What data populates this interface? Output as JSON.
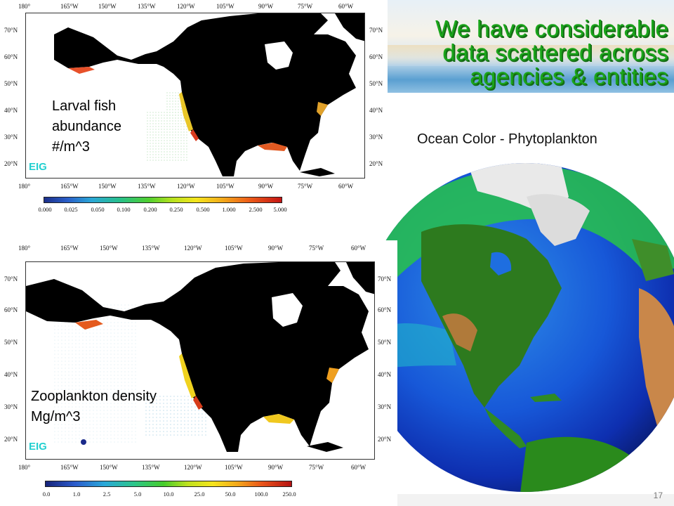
{
  "slide": {
    "title_lines": [
      "We have considerable",
      "data scattered across",
      "agencies & entities"
    ],
    "slide_number": "17"
  },
  "top_map": {
    "label_lines": [
      "Larval fish",
      "abundance",
      "#/m^3"
    ],
    "watermark": "EIG",
    "lon_labels": [
      "180°",
      "165°W",
      "150°W",
      "135°W",
      "120°W",
      "105°W",
      "90°W",
      "75°W",
      "60°W"
    ],
    "lat_labels": [
      "70°N",
      "60°N",
      "50°N",
      "40°N",
      "30°N",
      "20°N"
    ],
    "colorbar_ticks": [
      "0.000",
      "0.025",
      "0.050",
      "0.100",
      "0.200",
      "0.250",
      "0.500",
      "1.000",
      "2.500",
      "5.000"
    ]
  },
  "bottom_map": {
    "label_lines": [
      "Zooplankton density",
      "Mg/m^3"
    ],
    "watermark": "EIG",
    "lon_labels": [
      "180°",
      "165°W",
      "150°W",
      "135°W",
      "120°W",
      "105°W",
      "90°W",
      "75°W",
      "60°W"
    ],
    "lat_labels": [
      "70°N",
      "60°N",
      "50°N",
      "40°N",
      "30°N",
      "20°N"
    ],
    "colorbar_ticks": [
      "0.0",
      "1.0",
      "2.5",
      "5.0",
      "10.0",
      "25.0",
      "50.0",
      "100.0",
      "250.0"
    ]
  },
  "globe": {
    "caption": "Ocean Color - Phytoplankton"
  },
  "colors": {
    "title_green": "#1aa51a",
    "land": "#000000",
    "eig": "#23d0d0"
  }
}
